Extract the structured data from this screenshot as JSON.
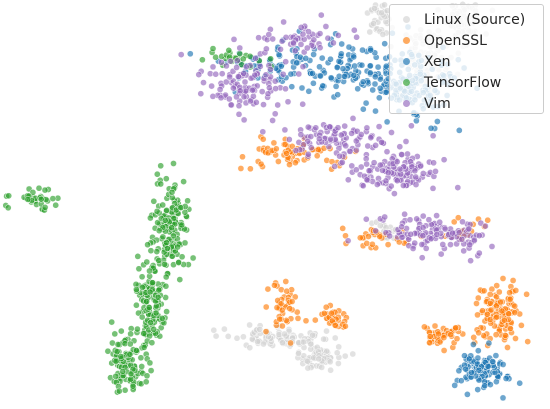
{
  "chart_data": {
    "type": "scatter",
    "title": "",
    "xlabel": "",
    "ylabel": "",
    "axes_visible": false,
    "grid": false,
    "legend_position": "top-right",
    "point_opacity": 0.65,
    "point_outline": "#ffffff",
    "series": [
      {
        "name": "Linux (Source)",
        "color": "#d3d3d3",
        "clusters": [
          {
            "cx": 0.44,
            "cy": 0.62,
            "sx": 0.04,
            "sy": 0.05,
            "n": 110
          },
          {
            "cx": 0.55,
            "cy": 0.74,
            "sx": 0.03,
            "sy": 0.03,
            "n": 70
          },
          {
            "cx": 0.3,
            "cy": 0.76,
            "sx": 0.02,
            "sy": 0.03,
            "n": 40
          },
          {
            "cx": 0.32,
            "cy": 0.09,
            "sx": 0.02,
            "sy": 0.02,
            "n": 20
          },
          {
            "cx": -0.01,
            "cy": -0.25,
            "sx": 0.07,
            "sy": 0.015,
            "n": 90
          },
          {
            "cx": 0.12,
            "cy": -0.31,
            "sx": 0.035,
            "sy": 0.02,
            "n": 70
          }
        ]
      },
      {
        "name": "OpenSSL",
        "color": "#ff7f0e",
        "clusters": [
          {
            "cx": 0.66,
            "cy": -0.17,
            "sx": 0.035,
            "sy": 0.045,
            "n": 130
          },
          {
            "cx": 0.48,
            "cy": -0.24,
            "sx": 0.03,
            "sy": 0.02,
            "n": 50
          },
          {
            "cx": 0.02,
            "cy": -0.15,
            "sx": 0.025,
            "sy": 0.04,
            "n": 45
          },
          {
            "cx": 0.16,
            "cy": -0.19,
            "sx": 0.025,
            "sy": 0.02,
            "n": 35
          },
          {
            "cx": 0.06,
            "cy": 0.33,
            "sx": 0.08,
            "sy": 0.02,
            "n": 70
          },
          {
            "cx": 0.55,
            "cy": 0.09,
            "sx": 0.03,
            "sy": 0.015,
            "n": 20
          },
          {
            "cx": 0.28,
            "cy": 0.06,
            "sx": 0.05,
            "sy": 0.02,
            "n": 30
          }
        ]
      },
      {
        "name": "Xen",
        "color": "#1f77b4",
        "clusters": [
          {
            "cx": 0.4,
            "cy": 0.54,
            "sx": 0.06,
            "sy": 0.06,
            "n": 140
          },
          {
            "cx": 0.61,
            "cy": -0.35,
            "sx": 0.035,
            "sy": 0.03,
            "n": 110
          },
          {
            "cx": 0.25,
            "cy": 0.59,
            "sx": 0.07,
            "sy": 0.04,
            "n": 90
          },
          {
            "cx": 0.02,
            "cy": 0.6,
            "sx": 0.09,
            "sy": 0.04,
            "n": 90
          }
        ]
      },
      {
        "name": "TensorFlow",
        "color": "#2ca02c",
        "clusters": [
          {
            "cx": -0.32,
            "cy": 0.1,
            "sx": 0.025,
            "sy": 0.08,
            "n": 160
          },
          {
            "cx": -0.38,
            "cy": -0.15,
            "sx": 0.025,
            "sy": 0.08,
            "n": 140
          },
          {
            "cx": -0.45,
            "cy": -0.33,
            "sx": 0.03,
            "sy": 0.04,
            "n": 110
          },
          {
            "cx": -0.73,
            "cy": 0.18,
            "sx": 0.04,
            "sy": 0.02,
            "n": 40
          },
          {
            "cx": -0.14,
            "cy": 0.63,
            "sx": 0.05,
            "sy": 0.015,
            "n": 25
          }
        ]
      },
      {
        "name": "Vim",
        "color": "#9467bd",
        "clusters": [
          {
            "cx": -0.1,
            "cy": 0.55,
            "sx": 0.07,
            "sy": 0.04,
            "n": 110
          },
          {
            "cx": 0.18,
            "cy": 0.38,
            "sx": 0.09,
            "sy": 0.03,
            "n": 100
          },
          {
            "cx": 0.35,
            "cy": 0.27,
            "sx": 0.07,
            "sy": 0.03,
            "n": 120
          },
          {
            "cx": 0.45,
            "cy": 0.08,
            "sx": 0.07,
            "sy": 0.025,
            "n": 100
          },
          {
            "cx": 0.08,
            "cy": 0.68,
            "sx": 0.07,
            "sy": 0.025,
            "n": 50
          },
          {
            "cx": 0.58,
            "cy": 0.06,
            "sx": 0.025,
            "sy": 0.03,
            "n": 25
          }
        ]
      }
    ]
  }
}
